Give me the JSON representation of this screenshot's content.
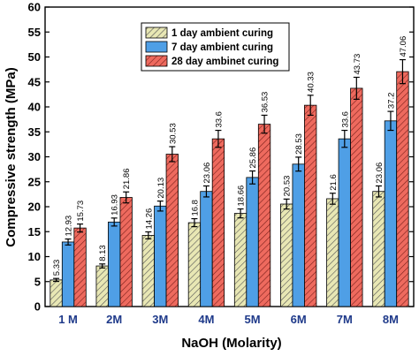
{
  "chart_data": {
    "type": "bar",
    "xlabel": "NaOH (Molarity)",
    "ylabel": "Compressive strength (MPa)",
    "ylim": [
      0,
      60
    ],
    "yticks": [
      0,
      5,
      10,
      15,
      20,
      25,
      30,
      35,
      40,
      45,
      50,
      55,
      60
    ],
    "categories": [
      "1 M",
      "2M",
      "3M",
      "4M",
      "5M",
      "6M",
      "7M",
      "8M"
    ],
    "legend_position": "top-center",
    "series": [
      {
        "name": "1 day ambient curing",
        "color": "#e8e7b4",
        "pattern": "hatch",
        "values": [
          5.33,
          8.13,
          14.26,
          16.8,
          18.66,
          20.53,
          21.6,
          23.06
        ],
        "labels": [
          "5.33",
          "8.13",
          "14.26",
          "16.8",
          "18.66",
          "20.53",
          "21.6",
          "23.06"
        ],
        "errors": [
          0.3,
          0.4,
          0.7,
          0.8,
          0.9,
          1.0,
          1.1,
          1.1
        ]
      },
      {
        "name": "7 day ambient curing",
        "color": "#4f9fe6",
        "pattern": "solid",
        "values": [
          12.93,
          16.93,
          20.13,
          23.06,
          25.86,
          28.53,
          33.6,
          37.2
        ],
        "labels": [
          "12.93",
          "16.93",
          "20.13",
          "23.06",
          "25.86",
          "28.53",
          "33.6",
          "37.2"
        ],
        "errors": [
          0.6,
          0.8,
          1.0,
          1.1,
          1.3,
          1.4,
          1.7,
          1.9
        ]
      },
      {
        "name": "28 day ambinet curing",
        "color": "#ee6a5e",
        "pattern": "hatch",
        "values": [
          15.73,
          21.86,
          30.53,
          33.6,
          36.53,
          40.33,
          43.73,
          47.06
        ],
        "labels": [
          "15.73",
          "21.86",
          "30.53",
          "33.6",
          "36.53",
          "40.33",
          "43.73",
          "47.06"
        ],
        "errors": [
          0.8,
          1.1,
          1.5,
          1.7,
          1.8,
          2.0,
          2.2,
          2.4
        ]
      }
    ]
  }
}
